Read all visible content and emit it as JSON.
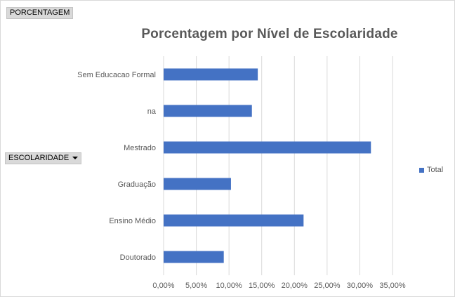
{
  "pivot": {
    "value_field": "PORCENTAGEM",
    "axis_field": "ESCOLARIDADE"
  },
  "chart_data": {
    "type": "bar",
    "orientation": "horizontal",
    "title": "Porcentagem por Nível de Escolaridade",
    "categories": [
      "Doutorado",
      "Ensino Médio",
      "Graduação",
      "Mestrado",
      "na",
      "Sem Educacao Formal"
    ],
    "series": [
      {
        "name": "Total",
        "values": [
          9.2,
          21.4,
          10.3,
          31.7,
          13.5,
          14.4
        ]
      }
    ],
    "xlim": [
      0,
      35
    ],
    "xticks": [
      "0,00%",
      "5,00%",
      "10,00%",
      "15,00%",
      "20,00%",
      "25,00%",
      "30,00%",
      "35,00%"
    ],
    "grid": true,
    "legend_position": "right",
    "bar_color": "#4472c4"
  }
}
